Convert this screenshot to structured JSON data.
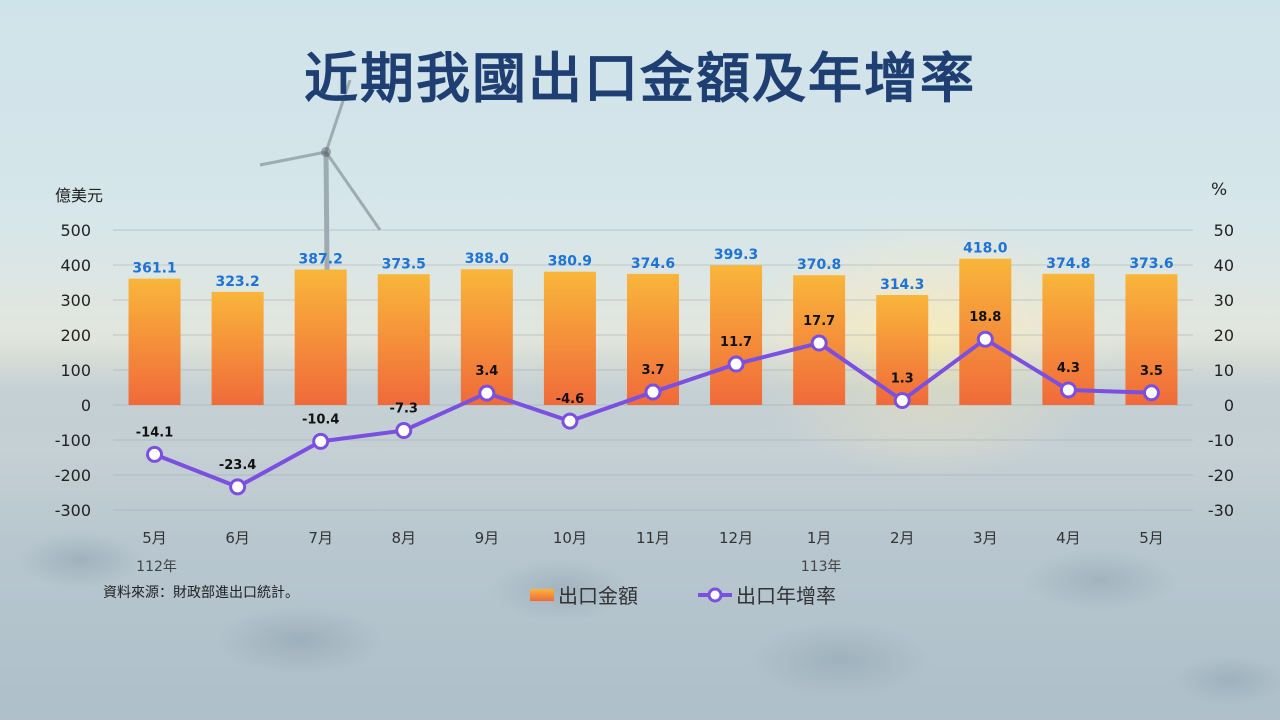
{
  "title": "近期我國出口金額及年增率",
  "source_note": "資料來源：財政部進出口統計。",
  "colors": {
    "title": "#1f3f73",
    "bar_top": "#f9b63a",
    "bar_bottom": "#f06a3a",
    "bar_label": "#1e73d6",
    "line": "#7b4fe0",
    "marker_fill": "#ffffff"
  },
  "chart_data": {
    "type": "bar+line",
    "categories": [
      "5月",
      "6月",
      "7月",
      "8月",
      "9月",
      "10月",
      "11月",
      "12月",
      "1月",
      "2月",
      "3月",
      "4月",
      "5月"
    ],
    "year_markers": [
      {
        "index": 0,
        "label": "112年"
      },
      {
        "index": 8,
        "label": "113年"
      }
    ],
    "series": [
      {
        "name": "出口金額",
        "type": "bar",
        "axis": "left",
        "values": [
          361.1,
          323.2,
          387.2,
          373.5,
          388.0,
          380.9,
          374.6,
          399.3,
          370.8,
          314.3,
          418.0,
          374.8,
          373.6
        ],
        "labels": [
          "361.1",
          "323.2",
          "387.2",
          "373.5",
          "388.0",
          "380.9",
          "374.6",
          "399.3",
          "370.8",
          "314.3",
          "418.0",
          "374.8",
          "373.6"
        ]
      },
      {
        "name": "出口年增率",
        "type": "line",
        "axis": "right",
        "values": [
          -14.1,
          -23.4,
          -10.4,
          -7.3,
          3.4,
          -4.6,
          3.7,
          11.7,
          17.7,
          1.3,
          18.8,
          4.3,
          3.5
        ],
        "labels": [
          "-14.1",
          "-23.4",
          "-10.4",
          "-7.3",
          "3.4",
          "-4.6",
          "3.7",
          "11.7",
          "17.7",
          "1.3",
          "18.8",
          "4.3",
          "3.5"
        ]
      }
    ],
    "y_left": {
      "label": "億美元",
      "range": [
        -300,
        500
      ],
      "ticks": [
        500,
        400,
        300,
        200,
        100,
        0,
        -100,
        -200,
        -300
      ],
      "tick_labels": [
        "500",
        "400",
        "300",
        "200",
        "100",
        "0",
        "-100",
        "-200",
        "-300"
      ]
    },
    "y_right": {
      "label": "%",
      "range": [
        -30,
        50
      ],
      "ticks": [
        50,
        40,
        30,
        20,
        10,
        0,
        -10,
        -20,
        -30
      ],
      "tick_labels": [
        "50",
        "40",
        "30",
        "20",
        "10",
        "0",
        "-10",
        "-20",
        "-30"
      ]
    },
    "gridlines": true,
    "legend_position": "bottom"
  }
}
